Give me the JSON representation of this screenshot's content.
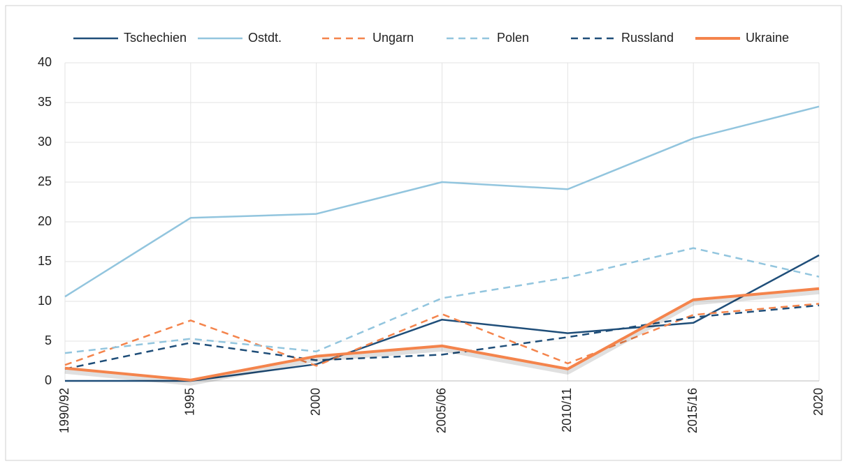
{
  "chart_data": {
    "type": "line",
    "categories": [
      "1990/92",
      "1995",
      "2000",
      "2005/06",
      "2010/11",
      "2015/16",
      "2020"
    ],
    "series": [
      {
        "name": "Tschechien",
        "color": "#1f4e79",
        "dashed": false,
        "values": [
          0,
          0,
          2.1,
          7.7,
          6.0,
          7.3,
          15.8
        ]
      },
      {
        "name": "Ostdt.",
        "color": "#92c5de",
        "dashed": false,
        "values": [
          10.6,
          20.5,
          21.0,
          25.0,
          24.1,
          30.5,
          34.5
        ]
      },
      {
        "name": "Ungarn",
        "color": "#f4844c",
        "dashed": true,
        "values": [
          2.0,
          7.6,
          1.9,
          8.4,
          2.2,
          8.3,
          9.7
        ]
      },
      {
        "name": "Polen",
        "color": "#92c5de",
        "dashed": true,
        "values": [
          3.5,
          5.3,
          3.7,
          10.4,
          13.0,
          16.7,
          13.1
        ]
      },
      {
        "name": "Russland",
        "color": "#1f4e79",
        "dashed": true,
        "values": [
          1.5,
          4.8,
          2.6,
          3.3,
          5.5,
          8.0,
          9.5
        ]
      },
      {
        "name": "Ukraine",
        "color": "#f4844c",
        "dashed": false,
        "values": [
          1.6,
          0.1,
          3.1,
          4.4,
          1.5,
          10.2,
          11.6
        ]
      }
    ],
    "ylim": [
      0,
      40
    ],
    "yticks": [
      0,
      5,
      10,
      15,
      20,
      25,
      30,
      35,
      40
    ],
    "grid": true,
    "legend": "top"
  }
}
